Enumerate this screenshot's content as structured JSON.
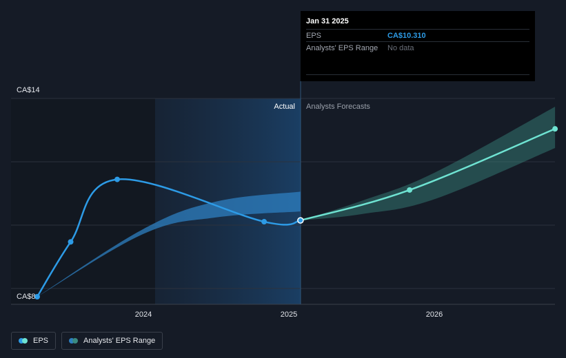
{
  "chart_data": {
    "type": "line",
    "title": "",
    "y_axis": {
      "top_label": "CA$14",
      "bottom_label": "CA$8",
      "ylim": [
        8,
        14
      ]
    },
    "x_axis": {
      "tick_labels": [
        "2024",
        "2025",
        "2026"
      ]
    },
    "sections": {
      "actual_label": "Actual",
      "forecast_label": "Analysts Forecasts"
    },
    "series": [
      {
        "name": "EPS",
        "color": "#2d9be6",
        "points": [
          {
            "x": 2023.27,
            "y": 8.0
          },
          {
            "x": 2023.5,
            "y": 9.66
          },
          {
            "x": 2023.82,
            "y": 11.55
          },
          {
            "x": 2024.83,
            "y": 10.27
          },
          {
            "x": 2025.08,
            "y": 10.31
          }
        ]
      },
      {
        "name": "EPS Forecast",
        "color": "#6fe3d2",
        "points": [
          {
            "x": 2025.08,
            "y": 10.31
          },
          {
            "x": 2025.83,
            "y": 11.23
          },
          {
            "x": 2026.83,
            "y": 13.08
          }
        ]
      }
    ],
    "ranges": [
      {
        "name": "Analysts' EPS Range (historical)",
        "color": "#2d7fc0",
        "x": [
          2023.27,
          2024.0,
          2024.5,
          2025.08
        ],
        "low": [
          8.0,
          9.9,
          10.4,
          10.58
        ],
        "high": [
          8.0,
          10.05,
          10.88,
          11.18
        ]
      },
      {
        "name": "Analysts' EPS Range (forecast)",
        "color": "#3a8a80",
        "x": [
          2025.08,
          2025.5,
          2026.0,
          2026.83
        ],
        "low": [
          10.31,
          10.5,
          10.95,
          12.5
        ],
        "high": [
          10.31,
          10.9,
          11.75,
          13.75
        ]
      }
    ]
  },
  "tooltip": {
    "date": "Jan 31 2025",
    "rows": [
      {
        "key": "EPS",
        "value": "CA$10.310"
      },
      {
        "key": "Analysts' EPS Range",
        "value": "No data"
      }
    ]
  },
  "legend": {
    "items": [
      {
        "label": "EPS",
        "color_a": "#2d9be6",
        "color_b": "#6fe3d2"
      },
      {
        "label": "Analysts' EPS Range",
        "color_a": "#2d7fc0",
        "color_b": "#3a8a80"
      }
    ]
  }
}
